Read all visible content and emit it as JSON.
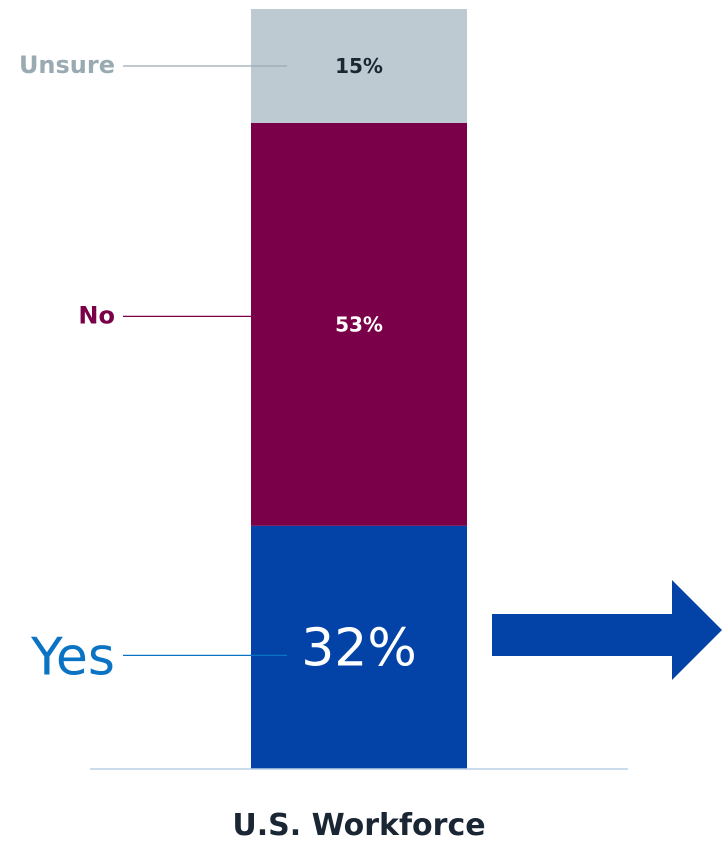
{
  "chart_data": {
    "type": "bar",
    "orientation": "vertical-stacked",
    "categories": [
      "U.S. Workforce"
    ],
    "series": [
      {
        "name": "Yes",
        "values": [
          32
        ],
        "label": "32%",
        "color": "#0343a8",
        "label_color": "#0a73c4"
      },
      {
        "name": "No",
        "values": [
          53
        ],
        "label": "53%",
        "color": "#7a0049",
        "label_color": "#7a0049"
      },
      {
        "name": "Unsure",
        "values": [
          15
        ],
        "label": "15%",
        "color": "#bdcad1",
        "label_color": "#9aaab3"
      }
    ],
    "ylim": [
      0,
      100
    ],
    "baseline_color": "#b9d0e6",
    "arrow_color": "#0343a8",
    "value_text_color_light": "#ffffff",
    "value_text_color_dark": "#1a2634"
  }
}
